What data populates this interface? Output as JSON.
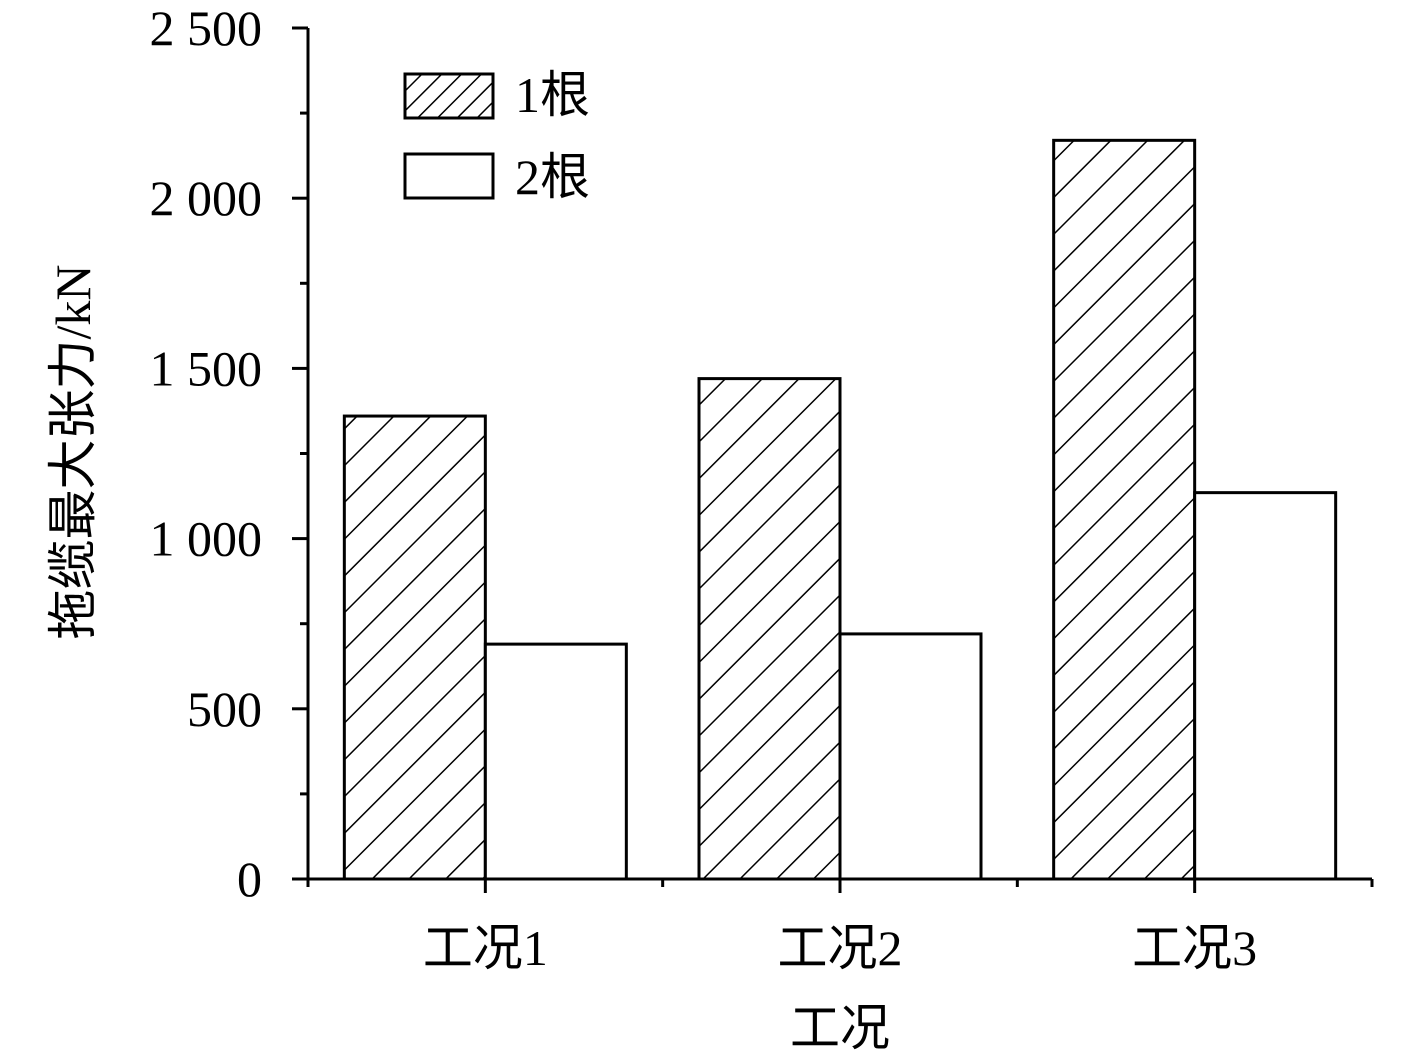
{
  "chart_data": {
    "type": "bar",
    "categories": [
      "工况1",
      "工况2",
      "工况3"
    ],
    "series": [
      {
        "name": "1根",
        "values": [
          1360,
          1470,
          2170
        ],
        "pattern": "hatch"
      },
      {
        "name": "2根",
        "values": [
          690,
          720,
          1135
        ],
        "pattern": "none"
      }
    ],
    "xlabel": "工况",
    "ylabel": "拖缆最大张力/kN",
    "ylim": [
      0,
      2500
    ],
    "yticks": [
      {
        "value": 0,
        "label": "0"
      },
      {
        "value": 500,
        "label": "500"
      },
      {
        "value": 1000,
        "label": "1 000"
      },
      {
        "value": 1500,
        "label": "1 500"
      },
      {
        "value": 2000,
        "label": "2 000"
      },
      {
        "value": 2500,
        "label": "2 500"
      }
    ],
    "legend_position": "top-left",
    "grid": false,
    "colors": {
      "bar_stroke": "#000000",
      "bar_fill": "#ffffff",
      "hatch": "#000000"
    }
  }
}
